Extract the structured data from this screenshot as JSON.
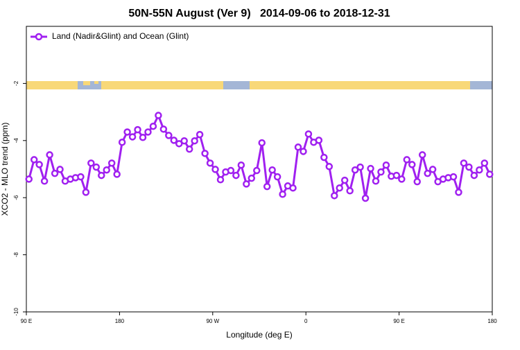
{
  "chart_data": {
    "type": "line",
    "title": "50N-55N August (Ver 9)   2014-09-06 to 2018-12-31",
    "xlabel": "Longitude (deg E)",
    "ylabel": "XCO2 - MLO trend (ppm)",
    "legend": "upper left",
    "grid": false,
    "xlim": [
      90,
      540
    ],
    "ylim": [
      -10,
      0
    ],
    "xticks": [
      {
        "value": 90,
        "label": "90 E"
      },
      180,
      {
        "value": 270,
        "label": "90 W"
      },
      {
        "value": 360,
        "label": "0"
      },
      {
        "value": 450,
        "label": "90 E"
      },
      {
        "value": 540,
        "label": "180"
      }
    ],
    "yticks": [
      -10,
      -8,
      -6,
      -4,
      -2
    ],
    "x": [
      92.5,
      97.5,
      102.5,
      107.5,
      112.5,
      117.5,
      122.5,
      127.5,
      132.5,
      137.5,
      142.5,
      147.5,
      152.5,
      157.5,
      162.5,
      167.5,
      172.5,
      177.5,
      182.5,
      187.5,
      192.5,
      197.5,
      202.5,
      207.5,
      212.5,
      217.5,
      222.5,
      227.5,
      232.5,
      237.5,
      242.5,
      247.5,
      252.5,
      257.5,
      262.5,
      267.5,
      272.5,
      277.5,
      282.5,
      287.5,
      292.5,
      297.5,
      302.5,
      307.5,
      312.5,
      317.5,
      322.5,
      327.5,
      332.5,
      337.5,
      342.5,
      347.5,
      352.5,
      357.5,
      362.5,
      367.5,
      372.5,
      377.5,
      382.5,
      387.5,
      392.5,
      397.5,
      402.5,
      407.5,
      412.5,
      417.5,
      422.5,
      427.5,
      432.5,
      437.5,
      442.5,
      447.5,
      452.5,
      457.5,
      462.5,
      467.5,
      472.5,
      477.5,
      482.5,
      487.5,
      492.5,
      497.5,
      502.5,
      507.5,
      512.5,
      517.5,
      522.5,
      527.5,
      532.5,
      537.5
    ],
    "series": [
      {
        "name": "Land (Nadir&Glint) and Ocean (Glint)",
        "color": "#a020f0",
        "values": [
          -5.35,
          -4.67,
          -4.84,
          -5.42,
          -4.5,
          -5.15,
          -5.01,
          -5.42,
          -5.35,
          -5.3,
          -5.27,
          -5.81,
          -4.79,
          -4.93,
          -5.22,
          -5.03,
          -4.79,
          -5.18,
          -4.06,
          -3.7,
          -3.87,
          -3.62,
          -3.89,
          -3.7,
          -3.5,
          -3.12,
          -3.6,
          -3.82,
          -3.99,
          -4.11,
          -4.01,
          -4.3,
          -4.01,
          -3.79,
          -4.45,
          -4.79,
          -5.01,
          -5.37,
          -5.1,
          -5.05,
          -5.22,
          -4.86,
          -5.52,
          -5.32,
          -5.05,
          -4.08,
          -5.61,
          -5.03,
          -5.27,
          -5.88,
          -5.59,
          -5.66,
          -4.23,
          -4.38,
          -3.77,
          -4.06,
          -3.99,
          -4.59,
          -4.91,
          -5.93,
          -5.66,
          -5.39,
          -5.76,
          -5.03,
          -4.93,
          -6.02,
          -4.98,
          -5.42,
          -5.1,
          -4.86,
          -5.25,
          -5.22,
          -5.35,
          -4.67,
          -4.84,
          -5.44,
          -4.5,
          -5.15,
          -5.01,
          -5.44,
          -5.35,
          -5.3,
          -5.27,
          -5.81,
          -4.79,
          -4.93,
          -5.22,
          -5.03,
          -4.79,
          -5.18
        ]
      }
    ]
  }
}
